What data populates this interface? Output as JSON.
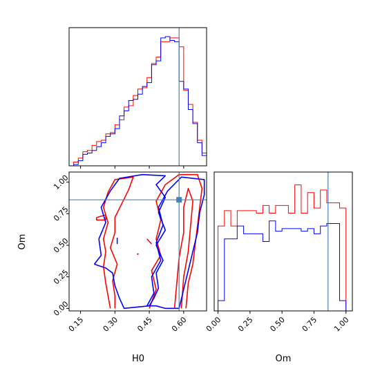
{
  "chart_data": {
    "type": "corner",
    "parameters": [
      "H0",
      "Om"
    ],
    "truths": {
      "H0": 0.58,
      "Om": 0.86
    },
    "colors": {
      "series_a": "#ff0000",
      "series_b": "#0000ff",
      "truth": "#4682b4"
    },
    "panels": [
      {
        "id": "hist_H0",
        "type": "step-histogram",
        "xlim": [
          0.1,
          0.7
        ],
        "ylim": [
          0,
          1.08
        ],
        "xticks": [
          0.15,
          0.3,
          0.45,
          0.6
        ],
        "xtick_labels_shown": false,
        "yticks_shown": false,
        "bins": [
          0.1,
          0.12,
          0.14,
          0.16,
          0.18,
          0.2,
          0.22,
          0.24,
          0.26,
          0.28,
          0.3,
          0.32,
          0.34,
          0.36,
          0.38,
          0.4,
          0.42,
          0.44,
          0.46,
          0.48,
          0.5,
          0.52,
          0.54,
          0.56,
          0.58,
          0.6,
          0.62,
          0.64,
          0.66,
          0.68,
          0.7
        ],
        "series": [
          {
            "color_key": "series_a",
            "values": [
              0.0,
              0.03,
              0.06,
              0.11,
              0.12,
              0.16,
              0.19,
              0.2,
              0.25,
              0.26,
              0.32,
              0.36,
              0.46,
              0.47,
              0.55,
              0.6,
              0.61,
              0.69,
              0.8,
              0.85,
              0.97,
              0.97,
              1.0,
              1.0,
              0.93,
              0.59,
              0.48,
              0.34,
              0.2,
              0.1
            ]
          },
          {
            "color_key": "series_b",
            "values": [
              0.0,
              0.01,
              0.04,
              0.09,
              0.1,
              0.12,
              0.15,
              0.18,
              0.23,
              0.25,
              0.29,
              0.39,
              0.43,
              0.51,
              0.52,
              0.56,
              0.62,
              0.65,
              0.79,
              0.82,
              1.0,
              1.01,
              0.98,
              0.97,
              0.66,
              0.6,
              0.44,
              0.33,
              0.18,
              0.08
            ]
          }
        ]
      },
      {
        "id": "contour_H0_Om",
        "type": "contour",
        "xlim": [
          0.1,
          0.7
        ],
        "ylim": [
          -0.02,
          1.08
        ],
        "xticks": [
          0.15,
          0.3,
          0.45,
          0.6
        ],
        "xtick_labels": [
          "0.15",
          "0.30",
          "0.45",
          "0.60"
        ],
        "yticks": [
          0.0,
          0.25,
          0.5,
          0.75,
          1.0
        ],
        "ytick_labels": [
          "0.00",
          "0.25",
          "0.50",
          "0.75",
          "1.00"
        ],
        "xlabel": "H0",
        "ylabel": "Om",
        "contours": [
          {
            "color_key": "series_a",
            "points": [
              [
                0.28,
                0.0
              ],
              [
                0.27,
                0.1
              ],
              [
                0.26,
                0.2
              ],
              [
                0.25,
                0.33
              ],
              [
                0.26,
                0.45
              ],
              [
                0.25,
                0.55
              ],
              [
                0.27,
                0.68
              ],
              [
                0.25,
                0.8
              ],
              [
                0.27,
                0.92
              ],
              [
                0.3,
                1.02
              ],
              [
                0.38,
                1.04
              ],
              [
                0.36,
                0.94
              ],
              [
                0.33,
                0.83
              ],
              [
                0.3,
                0.72
              ],
              [
                0.3,
                0.6
              ],
              [
                0.28,
                0.48
              ],
              [
                0.31,
                0.35
              ],
              [
                0.29,
                0.22
              ],
              [
                0.3,
                0.1
              ],
              [
                0.3,
                0.0
              ]
            ]
          },
          {
            "color_key": "series_a",
            "points": [
              [
                0.22,
                0.72
              ],
              [
                0.26,
                0.74
              ],
              [
                0.26,
                0.7
              ],
              [
                0.22,
                0.7
              ],
              [
                0.22,
                0.72
              ]
            ]
          },
          {
            "color_key": "series_a",
            "points": [
              [
                0.45,
                0.0
              ],
              [
                0.48,
                0.15
              ],
              [
                0.46,
                0.3
              ],
              [
                0.5,
                0.42
              ],
              [
                0.48,
                0.55
              ],
              [
                0.5,
                0.7
              ],
              [
                0.48,
                0.85
              ],
              [
                0.52,
                0.98
              ],
              [
                0.58,
                1.06
              ],
              [
                0.66,
                1.06
              ],
              [
                0.68,
                0.95
              ],
              [
                0.67,
                0.8
              ],
              [
                0.66,
                0.65
              ],
              [
                0.65,
                0.5
              ],
              [
                0.64,
                0.35
              ],
              [
                0.62,
                0.2
              ],
              [
                0.61,
                0.0
              ]
            ]
          },
          {
            "color_key": "series_a",
            "points": [
              [
                0.56,
                0.0
              ],
              [
                0.57,
                0.2
              ],
              [
                0.58,
                0.4
              ],
              [
                0.6,
                0.6
              ],
              [
                0.6,
                0.8
              ],
              [
                0.62,
                0.95
              ],
              [
                0.64,
                0.85
              ],
              [
                0.63,
                0.65
              ],
              [
                0.62,
                0.45
              ],
              [
                0.6,
                0.25
              ],
              [
                0.59,
                0.0
              ]
            ]
          }
        ],
        "contours_b": [
          {
            "color_key": "series_b",
            "points": [
              [
                0.21,
                0.35
              ],
              [
                0.24,
                0.42
              ],
              [
                0.23,
                0.55
              ],
              [
                0.26,
                0.68
              ],
              [
                0.24,
                0.8
              ],
              [
                0.28,
                0.93
              ],
              [
                0.32,
                1.03
              ],
              [
                0.42,
                1.06
              ],
              [
                0.52,
                1.05
              ],
              [
                0.48,
                0.98
              ],
              [
                0.52,
                0.88
              ],
              [
                0.49,
                0.76
              ],
              [
                0.52,
                0.62
              ],
              [
                0.48,
                0.5
              ],
              [
                0.51,
                0.38
              ],
              [
                0.48,
                0.28
              ],
              [
                0.49,
                0.16
              ],
              [
                0.47,
                0.08
              ],
              [
                0.45,
                0.02
              ],
              [
                0.34,
                0.0
              ],
              [
                0.32,
                0.08
              ],
              [
                0.3,
                0.18
              ],
              [
                0.29,
                0.28
              ],
              [
                0.26,
                0.32
              ],
              [
                0.21,
                0.35
              ]
            ]
          },
          {
            "color_key": "series_b",
            "points": [
              [
                0.44,
                0.02
              ],
              [
                0.47,
                0.12
              ],
              [
                0.46,
                0.25
              ],
              [
                0.5,
                0.38
              ],
              [
                0.48,
                0.52
              ],
              [
                0.51,
                0.66
              ],
              [
                0.49,
                0.8
              ],
              [
                0.53,
                0.93
              ],
              [
                0.59,
                1.04
              ],
              [
                0.69,
                1.02
              ],
              [
                0.69,
                0.9
              ],
              [
                0.67,
                0.76
              ],
              [
                0.66,
                0.6
              ],
              [
                0.64,
                0.45
              ],
              [
                0.62,
                0.3
              ],
              [
                0.6,
                0.15
              ],
              [
                0.58,
                0.0
              ],
              [
                0.52,
                0.0
              ],
              [
                0.48,
                0.02
              ],
              [
                0.44,
                0.02
              ]
            ]
          }
        ]
      },
      {
        "id": "hist_Om",
        "type": "step-histogram",
        "xlim": [
          -0.03,
          1.05
        ],
        "ylim": [
          0,
          1.08
        ],
        "xticks": [
          0.0,
          0.25,
          0.5,
          0.75,
          1.0
        ],
        "xtick_labels": [
          "0.00",
          "0.25",
          "0.50",
          "0.75",
          "1.00"
        ],
        "xlabel": "Om",
        "yticks_shown": false,
        "bins": [
          0.0,
          0.05,
          0.1,
          0.15,
          0.2,
          0.25,
          0.3,
          0.35,
          0.4,
          0.45,
          0.5,
          0.55,
          0.6,
          0.65,
          0.7,
          0.75,
          0.8,
          0.85,
          0.9,
          0.95,
          1.0
        ],
        "series": [
          {
            "color_key": "series_a",
            "values": [
              0.66,
              0.78,
              0.66,
              0.78,
              0.78,
              0.78,
              0.76,
              0.82,
              0.76,
              0.82,
              0.82,
              0.76,
              0.98,
              0.76,
              0.92,
              0.8,
              0.94,
              0.84,
              0.84,
              0.8
            ]
          },
          {
            "color_key": "series_b",
            "values": [
              0.08,
              0.56,
              0.56,
              0.66,
              0.6,
              0.6,
              0.6,
              0.54,
              0.7,
              0.62,
              0.64,
              0.64,
              0.64,
              0.62,
              0.64,
              0.6,
              0.66,
              0.68,
              0.68,
              0.08
            ]
          }
        ]
      }
    ]
  }
}
